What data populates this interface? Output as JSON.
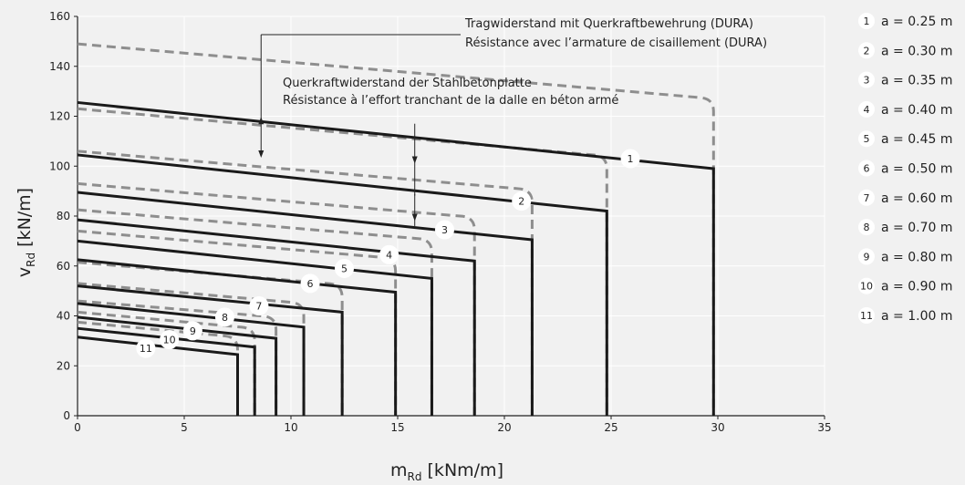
{
  "chart_data": {
    "type": "line",
    "xlabel": {
      "main": "m",
      "sub": "Rd",
      "unit": " [kNm/m]"
    },
    "ylabel": {
      "main": "v",
      "sub": "Rd",
      "unit": " [kN/m]"
    },
    "xlim": [
      0,
      35
    ],
    "ylim": [
      0,
      160
    ],
    "xticks": [
      "0",
      "5",
      "10",
      "15",
      "20",
      "25",
      "30",
      "35"
    ],
    "yticks": [
      "0",
      "20",
      "40",
      "60",
      "80",
      "100",
      "120",
      "140",
      "160"
    ],
    "grid": true,
    "legend_position": "right",
    "annotations": {
      "dura_line1": "Tragwiderstand mit Querkraftbewehrung (DURA)",
      "dura_line2": "Résistance avec l’armature de cisaillement (DURA)",
      "slab_line1": "Querkraftwiderstand der Stahlbetonplatte",
      "slab_line2": "Résistance à l’effort tranchant de la dalle en béton armé"
    },
    "series": [
      {
        "id": "1",
        "label": "a = 0.25 m",
        "slab": {
          "y0": 125.5,
          "x_end": 29.8,
          "y_end": 99
        },
        "dura": {
          "y0": 149,
          "x_end": 29.8,
          "y_end": 127
        },
        "marker": [
          25.9,
          103
        ]
      },
      {
        "id": "2",
        "label": "a = 0.30 m",
        "slab": {
          "y0": 104.5,
          "x_end": 24.8,
          "y_end": 82
        },
        "dura": {
          "y0": 123,
          "x_end": 24.8,
          "y_end": 104
        },
        "marker": [
          20.8,
          86
        ]
      },
      {
        "id": "3",
        "label": "a = 0.35 m",
        "slab": {
          "y0": 89.5,
          "x_end": 21.3,
          "y_end": 70.5
        },
        "dura": {
          "y0": 106,
          "x_end": 21.3,
          "y_end": 90.5
        },
        "marker": [
          17.2,
          74.5
        ]
      },
      {
        "id": "4",
        "label": "a = 0.40 m",
        "slab": {
          "y0": 78.5,
          "x_end": 18.6,
          "y_end": 62
        },
        "dura": {
          "y0": 93,
          "x_end": 18.6,
          "y_end": 79.5
        },
        "marker": [
          14.6,
          64.5
        ]
      },
      {
        "id": "5",
        "label": "a = 0.45 m",
        "slab": {
          "y0": 70,
          "x_end": 16.6,
          "y_end": 55
        },
        "dura": {
          "y0": 82.5,
          "x_end": 16.6,
          "y_end": 70.5
        },
        "marker": [
          12.5,
          59
        ]
      },
      {
        "id": "6",
        "label": "a = 0.50 m",
        "slab": {
          "y0": 62.5,
          "x_end": 14.9,
          "y_end": 49.5
        },
        "dura": {
          "y0": 74,
          "x_end": 14.9,
          "y_end": 63
        },
        "marker": [
          10.9,
          53
        ]
      },
      {
        "id": "7",
        "label": "a = 0.60 m",
        "slab": {
          "y0": 52,
          "x_end": 12.4,
          "y_end": 41.5
        },
        "dura": {
          "y0": 61.5,
          "x_end": 12.4,
          "y_end": 52.5
        },
        "marker": [
          8.5,
          44
        ]
      },
      {
        "id": "8",
        "label": "a = 0.70 m",
        "slab": {
          "y0": 45,
          "x_end": 10.6,
          "y_end": 35.5
        },
        "dura": {
          "y0": 53,
          "x_end": 10.6,
          "y_end": 45
        },
        "marker": [
          6.9,
          39.5
        ]
      },
      {
        "id": "9",
        "label": "a = 0.80 m",
        "slab": {
          "y0": 39.5,
          "x_end": 9.3,
          "y_end": 31
        },
        "dura": {
          "y0": 46,
          "x_end": 9.3,
          "y_end": 39.5
        },
        "marker": [
          5.4,
          34
        ]
      },
      {
        "id": "10",
        "label": "a = 0.90 m",
        "slab": {
          "y0": 35,
          "x_end": 8.3,
          "y_end": 27.5
        },
        "dura": {
          "y0": 41.5,
          "x_end": 8.3,
          "y_end": 35
        },
        "marker": [
          4.3,
          30.5
        ]
      },
      {
        "id": "11",
        "label": "a = 1.00 m",
        "slab": {
          "y0": 31.5,
          "x_end": 7.5,
          "y_end": 24.5
        },
        "dura": {
          "y0": 37.5,
          "x_end": 7.5,
          "y_end": 31.5
        },
        "marker": [
          3.2,
          27
        ]
      }
    ]
  },
  "colors": {
    "background": "#f1f1f1",
    "slab_line": "#1a1a1a",
    "dura_line": "#8e8e8e",
    "grid": "#ffffff",
    "axis": "#222222"
  }
}
